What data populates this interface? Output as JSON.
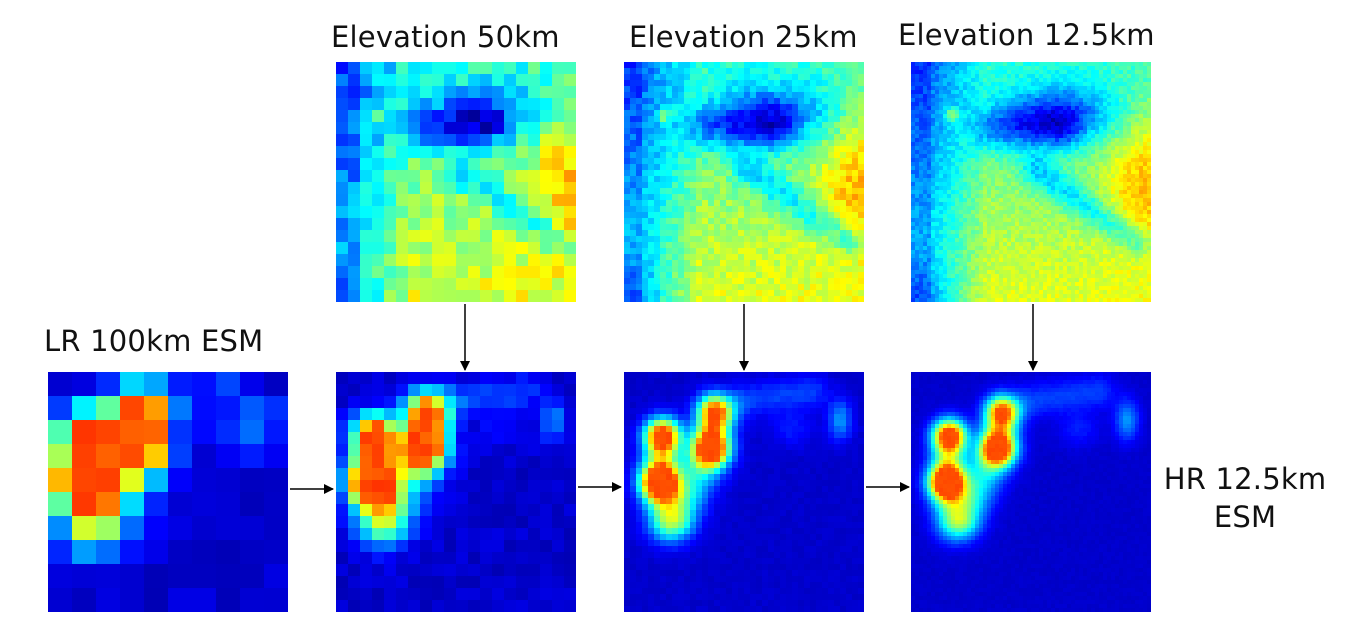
{
  "labels": {
    "elev50": "Elevation 50km",
    "elev25": "Elevation 25km",
    "elev12": "Elevation 12.5km",
    "lr": "LR 100km ESM",
    "hr_line1": "HR 12.5km",
    "hr_line2": "ESM"
  },
  "colors": {
    "background": "#ffffff",
    "arrow": "#000000",
    "colormap": "jet"
  }
}
